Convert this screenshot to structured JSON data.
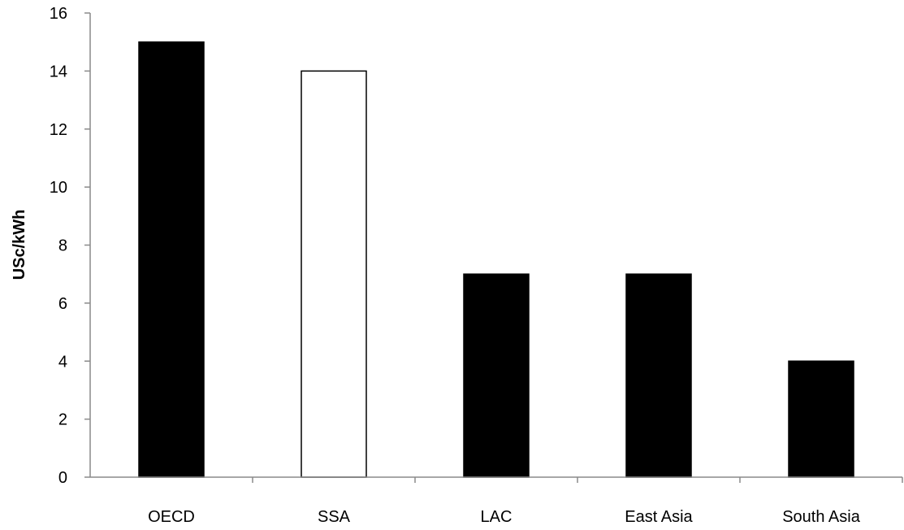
{
  "chart_data": {
    "type": "bar",
    "categories": [
      "OECD",
      "SSA",
      "LAC",
      "East Asia",
      "South Asia"
    ],
    "values": [
      15,
      14,
      7,
      7,
      4
    ],
    "bar_fills": [
      "#000000",
      "#ffffff",
      "#000000",
      "#000000",
      "#000000"
    ],
    "bar_stroke": "#000000",
    "title": "",
    "xlabel": "",
    "ylabel": "USc/kWh",
    "ylim": [
      0,
      16
    ],
    "yticks": [
      "0",
      "2",
      "4",
      "6",
      "8",
      "10",
      "12",
      "14",
      "16"
    ],
    "grid": false,
    "legend": "none"
  }
}
